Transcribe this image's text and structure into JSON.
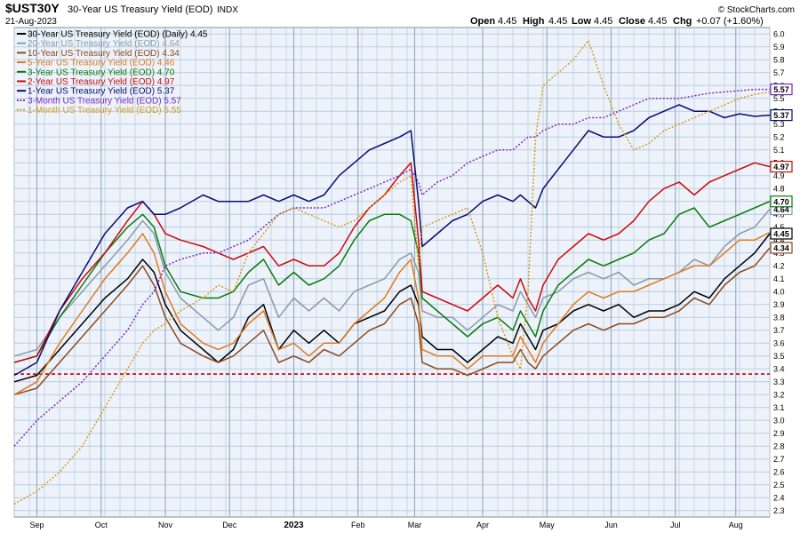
{
  "header": {
    "symbol": "$UST30Y",
    "name": "30-Year US Treasury Yield (EOD)",
    "exchange": "INDX",
    "date": "21-Aug-2023",
    "open_label": "Open",
    "open": "4.45",
    "high_label": "High",
    "high": "4.45",
    "low_label": "Low",
    "low": "4.45",
    "close_label": "Close",
    "close": "4.45",
    "chg_label": "Chg",
    "chg": "+0.07 (+1.60%)",
    "watermark": "© StockCharts.com"
  },
  "colors": {
    "grid": "#b9cde0",
    "plot_bg": "#eef3fb",
    "ref_line": "#cc0000"
  },
  "chart_data": {
    "type": "line",
    "ylim": [
      2.25,
      6.05
    ],
    "x_range": [
      0,
      100
    ],
    "y_ticks": [
      2.3,
      2.4,
      2.5,
      2.6,
      2.7,
      2.8,
      2.9,
      3.0,
      3.1,
      3.2,
      3.3,
      3.4,
      3.5,
      3.6,
      3.7,
      3.8,
      3.9,
      4.0,
      4.1,
      4.2,
      4.3,
      4.4,
      4.5,
      4.6,
      4.7,
      4.8,
      4.9,
      5.0,
      5.1,
      5.2,
      5.3,
      5.4,
      5.5,
      5.6,
      5.7,
      5.8,
      5.9,
      6.0
    ],
    "y_tick_labels": [
      "2.3",
      "2.4",
      "2.5",
      "2.6",
      "2.7",
      "2.8",
      "2.9",
      "3.0",
      "3.1",
      "3.2",
      "3.3",
      "3.4",
      "3.5",
      "3.6",
      "3.7",
      "3.8",
      "3.9",
      "4.0",
      "4.1",
      "4.2",
      "4.3",
      "4.4",
      "4.5",
      "4.6",
      "4.7",
      "4.8",
      "4.9",
      "5.0",
      "5.1",
      "5.2",
      "5.3",
      "5.4",
      "5.5",
      "5.6",
      "5.7",
      "5.8",
      "5.9",
      "6.0"
    ],
    "x_ticks": [
      {
        "label": "Sep",
        "x": 3,
        "bold": false
      },
      {
        "label": "Oct",
        "x": 11.5,
        "bold": false
      },
      {
        "label": "Nov",
        "x": 20,
        "bold": false
      },
      {
        "label": "Dec",
        "x": 28.5,
        "bold": false
      },
      {
        "label": "2023",
        "x": 37,
        "bold": true
      },
      {
        "label": "Feb",
        "x": 45.5,
        "bold": false
      },
      {
        "label": "Mar",
        "x": 53,
        "bold": false
      },
      {
        "label": "Apr",
        "x": 62,
        "bold": false
      },
      {
        "label": "May",
        "x": 70.5,
        "bold": false
      },
      {
        "label": "Jun",
        "x": 79,
        "bold": false
      },
      {
        "label": "Jul",
        "x": 87.5,
        "bold": false
      },
      {
        "label": "Aug",
        "x": 95.5,
        "bold": false
      }
    ],
    "reference_line": 3.36,
    "series": [
      {
        "name": "30-Year US Treasury Yield (EOD) (Daily) 4.45",
        "label": "4.45",
        "color": "#000000",
        "dashed": false,
        "x": [
          0,
          3,
          6,
          9,
          12,
          15,
          17,
          18.5,
          20,
          22,
          25,
          27,
          29,
          31,
          33,
          35,
          37,
          39,
          41,
          43,
          45,
          47,
          49,
          51,
          52.5,
          53.5,
          54,
          56,
          58,
          60,
          62,
          64,
          66,
          67,
          68,
          69,
          70,
          72,
          74,
          76,
          78,
          80,
          82,
          84,
          86,
          88,
          90,
          92,
          94,
          96,
          98,
          100
        ],
        "y": [
          3.3,
          3.35,
          3.55,
          3.75,
          3.95,
          4.1,
          4.25,
          4.15,
          3.9,
          3.7,
          3.55,
          3.45,
          3.55,
          3.8,
          3.9,
          3.55,
          3.7,
          3.6,
          3.7,
          3.6,
          3.75,
          3.8,
          3.85,
          4.0,
          4.05,
          3.9,
          3.65,
          3.55,
          3.55,
          3.45,
          3.55,
          3.65,
          3.6,
          3.75,
          3.65,
          3.55,
          3.7,
          3.75,
          3.85,
          3.9,
          3.85,
          3.9,
          3.8,
          3.85,
          3.85,
          3.9,
          4.0,
          3.95,
          4.1,
          4.2,
          4.3,
          4.45
        ]
      },
      {
        "name": "20-Year US Treasury Yield (EOD) 4.64",
        "label": "4.64",
        "color": "#8a9aa8",
        "dashed": false,
        "x": [
          0,
          3,
          6,
          9,
          12,
          15,
          17,
          18.5,
          20,
          22,
          25,
          27,
          29,
          31,
          33,
          35,
          37,
          39,
          41,
          43,
          45,
          47,
          49,
          51,
          52.5,
          53.5,
          54,
          56,
          58,
          60,
          62,
          64,
          66,
          67,
          68,
          69,
          70,
          72,
          74,
          76,
          78,
          80,
          82,
          84,
          86,
          88,
          90,
          92,
          94,
          96,
          98,
          100
        ],
        "y": [
          3.5,
          3.55,
          3.8,
          4.0,
          4.2,
          4.4,
          4.55,
          4.45,
          4.15,
          3.95,
          3.8,
          3.7,
          3.8,
          4.05,
          4.1,
          3.8,
          3.95,
          3.85,
          3.95,
          3.85,
          4.0,
          4.05,
          4.1,
          4.25,
          4.3,
          4.15,
          3.85,
          3.8,
          3.8,
          3.7,
          3.8,
          3.9,
          3.85,
          4.0,
          3.9,
          3.8,
          3.95,
          4.0,
          4.1,
          4.15,
          4.1,
          4.15,
          4.05,
          4.1,
          4.1,
          4.15,
          4.25,
          4.2,
          4.35,
          4.45,
          4.5,
          4.64
        ]
      },
      {
        "name": "10-Year US Treasury Yield (EOD) 4.34",
        "label": "4.34",
        "color": "#8b4a1f",
        "dashed": false,
        "x": [
          0,
          3,
          6,
          9,
          12,
          15,
          17,
          18.5,
          20,
          22,
          25,
          27,
          29,
          31,
          33,
          35,
          37,
          39,
          41,
          43,
          45,
          47,
          49,
          51,
          52.5,
          53.5,
          54,
          56,
          58,
          60,
          62,
          64,
          66,
          67,
          68,
          69,
          70,
          72,
          74,
          76,
          78,
          80,
          82,
          84,
          86,
          88,
          90,
          92,
          94,
          96,
          98,
          100
        ],
        "y": [
          3.2,
          3.25,
          3.45,
          3.65,
          3.85,
          4.05,
          4.2,
          4.05,
          3.8,
          3.6,
          3.5,
          3.45,
          3.5,
          3.6,
          3.7,
          3.45,
          3.5,
          3.45,
          3.55,
          3.5,
          3.6,
          3.7,
          3.75,
          3.9,
          3.95,
          3.75,
          3.45,
          3.4,
          3.4,
          3.35,
          3.4,
          3.45,
          3.45,
          3.55,
          3.45,
          3.4,
          3.5,
          3.6,
          3.7,
          3.75,
          3.7,
          3.75,
          3.75,
          3.8,
          3.8,
          3.85,
          3.95,
          3.9,
          4.05,
          4.15,
          4.2,
          4.34
        ]
      },
      {
        "name": "5-Year US Treasury Yield (EOD) 4.46",
        "label": "",
        "color": "#e07a1f",
        "dashed": false,
        "x": [
          0,
          3,
          6,
          9,
          12,
          15,
          17,
          18.5,
          20,
          22,
          25,
          27,
          29,
          31,
          33,
          35,
          37,
          39,
          41,
          43,
          45,
          47,
          49,
          51,
          52.5,
          53.5,
          54,
          56,
          58,
          60,
          62,
          64,
          66,
          67,
          68,
          69,
          70,
          72,
          74,
          76,
          78,
          80,
          82,
          84,
          86,
          88,
          90,
          92,
          94,
          96,
          98,
          100
        ],
        "y": [
          3.2,
          3.3,
          3.6,
          3.85,
          4.1,
          4.3,
          4.45,
          4.3,
          4.0,
          3.75,
          3.6,
          3.55,
          3.6,
          3.75,
          3.85,
          3.55,
          3.6,
          3.5,
          3.6,
          3.6,
          3.75,
          3.85,
          3.95,
          4.15,
          4.25,
          3.95,
          3.55,
          3.5,
          3.5,
          3.4,
          3.5,
          3.5,
          3.5,
          3.65,
          3.55,
          3.45,
          3.6,
          3.75,
          3.9,
          4.0,
          3.95,
          4.0,
          4.0,
          4.05,
          4.1,
          4.15,
          4.2,
          4.2,
          4.3,
          4.4,
          4.4,
          4.46
        ]
      },
      {
        "name": "3-Year US Treasury Yield (EOD) 4.70",
        "label": "4.70",
        "color": "#0b7a0b",
        "dashed": false,
        "x": [
          0,
          3,
          6,
          9,
          12,
          15,
          17,
          18.5,
          20,
          22,
          25,
          27,
          29,
          31,
          33,
          35,
          37,
          39,
          41,
          43,
          45,
          47,
          49,
          51,
          52.5,
          53.5,
          54,
          56,
          58,
          60,
          62,
          64,
          66,
          67,
          68,
          69,
          70,
          72,
          74,
          76,
          78,
          80,
          82,
          84,
          86,
          88,
          90,
          92,
          94,
          96,
          98,
          100
        ],
        "y": [
          3.45,
          3.5,
          3.8,
          4.05,
          4.3,
          4.5,
          4.6,
          4.5,
          4.2,
          4.0,
          3.95,
          3.95,
          4.0,
          4.15,
          4.25,
          4.05,
          4.15,
          4.05,
          4.1,
          4.2,
          4.4,
          4.55,
          4.6,
          4.6,
          4.55,
          4.3,
          3.95,
          3.85,
          3.75,
          3.65,
          3.75,
          3.8,
          3.7,
          3.85,
          3.75,
          3.65,
          3.85,
          4.05,
          4.15,
          4.25,
          4.2,
          4.25,
          4.3,
          4.4,
          4.45,
          4.6,
          4.65,
          4.5,
          4.55,
          4.6,
          4.65,
          4.7
        ]
      },
      {
        "name": "2-Year US Treasury Yield (EOD) 4.97",
        "label": "4.97",
        "color": "#cc0a0a",
        "dashed": false,
        "x": [
          0,
          3,
          6,
          9,
          12,
          15,
          17,
          18.5,
          20,
          22,
          25,
          27,
          29,
          31,
          33,
          35,
          37,
          39,
          41,
          43,
          45,
          47,
          49,
          51,
          52.5,
          53.5,
          54,
          56,
          58,
          60,
          62,
          64,
          66,
          67,
          68,
          69,
          70,
          72,
          74,
          76,
          78,
          80,
          82,
          84,
          86,
          88,
          90,
          92,
          94,
          96,
          98,
          100
        ],
        "y": [
          3.45,
          3.5,
          3.85,
          4.1,
          4.3,
          4.55,
          4.7,
          4.6,
          4.45,
          4.4,
          4.35,
          4.3,
          4.25,
          4.3,
          4.35,
          4.2,
          4.25,
          4.2,
          4.2,
          4.3,
          4.5,
          4.65,
          4.75,
          4.9,
          5.0,
          4.4,
          4.0,
          3.95,
          3.9,
          3.85,
          3.95,
          4.05,
          3.95,
          4.1,
          3.95,
          3.85,
          4.05,
          4.25,
          4.35,
          4.45,
          4.4,
          4.45,
          4.55,
          4.7,
          4.8,
          4.85,
          4.75,
          4.85,
          4.9,
          4.95,
          5.0,
          4.97
        ]
      },
      {
        "name": "1-Year US Treasury Yield (EOD) 5.37",
        "label": "5.37",
        "color": "#0a0a6e",
        "dashed": false,
        "x": [
          0,
          3,
          6,
          9,
          12,
          15,
          17,
          18.5,
          20,
          22,
          25,
          27,
          29,
          31,
          33,
          35,
          37,
          39,
          41,
          43,
          45,
          47,
          49,
          51,
          52.5,
          53.5,
          54,
          56,
          58,
          60,
          62,
          64,
          66,
          67,
          68,
          69,
          70,
          72,
          74,
          76,
          78,
          80,
          82,
          84,
          86,
          88,
          90,
          92,
          94,
          96,
          98,
          100
        ],
        "y": [
          3.35,
          3.45,
          3.85,
          4.15,
          4.45,
          4.65,
          4.7,
          4.6,
          4.6,
          4.65,
          4.75,
          4.7,
          4.7,
          4.7,
          4.75,
          4.7,
          4.75,
          4.7,
          4.75,
          4.9,
          5.0,
          5.1,
          5.15,
          5.2,
          5.25,
          4.7,
          4.35,
          4.45,
          4.55,
          4.6,
          4.7,
          4.75,
          4.7,
          4.75,
          4.7,
          4.65,
          4.8,
          4.95,
          5.1,
          5.25,
          5.2,
          5.2,
          5.25,
          5.35,
          5.4,
          5.45,
          5.4,
          5.4,
          5.35,
          5.38,
          5.36,
          5.37
        ]
      },
      {
        "name": "3-Month US Treasury Yield (EOD) 5.57",
        "label": "5.57",
        "color": "#7a2ab8",
        "dashed": true,
        "x": [
          0,
          3,
          6,
          9,
          12,
          15,
          17,
          18.5,
          20,
          22,
          25,
          27,
          29,
          31,
          33,
          35,
          37,
          39,
          41,
          43,
          45,
          47,
          49,
          51,
          52.5,
          53.5,
          54,
          56,
          58,
          60,
          62,
          64,
          66,
          67,
          68,
          69,
          70,
          72,
          74,
          76,
          78,
          80,
          82,
          84,
          86,
          88,
          90,
          92,
          94,
          96,
          98,
          100
        ],
        "y": [
          2.8,
          3.0,
          3.15,
          3.3,
          3.5,
          3.7,
          3.9,
          4.0,
          4.2,
          4.25,
          4.3,
          4.3,
          4.35,
          4.4,
          4.5,
          4.6,
          4.65,
          4.65,
          4.65,
          4.7,
          4.75,
          4.8,
          4.85,
          4.9,
          4.95,
          4.85,
          4.75,
          4.85,
          4.9,
          5.0,
          5.05,
          5.1,
          5.1,
          5.15,
          5.2,
          5.2,
          5.25,
          5.3,
          5.3,
          5.35,
          5.35,
          5.4,
          5.45,
          5.5,
          5.5,
          5.5,
          5.52,
          5.54,
          5.55,
          5.56,
          5.57,
          5.57
        ]
      },
      {
        "name": "1-Month US Treasury Yield (EOD) 5.55",
        "label": "",
        "color": "#d49a1a",
        "dashed": true,
        "x": [
          0,
          3,
          6,
          9,
          12,
          15,
          17,
          18.5,
          20,
          22,
          25,
          27,
          29,
          31,
          33,
          35,
          37,
          39,
          41,
          43,
          45,
          47,
          49,
          51,
          52.5,
          53.5,
          54,
          56,
          58,
          60,
          62,
          64,
          66,
          67,
          68,
          69,
          70,
          72,
          74,
          76,
          78,
          80,
          82,
          84,
          86,
          88,
          90,
          92,
          94,
          96,
          98,
          100
        ],
        "y": [
          2.35,
          2.45,
          2.6,
          2.8,
          3.1,
          3.4,
          3.6,
          3.7,
          3.75,
          3.85,
          3.95,
          4.05,
          4.0,
          4.3,
          4.45,
          4.6,
          4.65,
          4.6,
          4.55,
          4.5,
          4.55,
          4.65,
          4.75,
          4.85,
          4.9,
          4.2,
          4.5,
          4.55,
          4.6,
          4.65,
          4.3,
          3.8,
          3.5,
          3.4,
          4.0,
          5.2,
          5.6,
          5.7,
          5.8,
          5.95,
          5.6,
          5.3,
          5.1,
          5.15,
          5.25,
          5.3,
          5.35,
          5.4,
          5.45,
          5.5,
          5.53,
          5.55
        ]
      }
    ]
  }
}
